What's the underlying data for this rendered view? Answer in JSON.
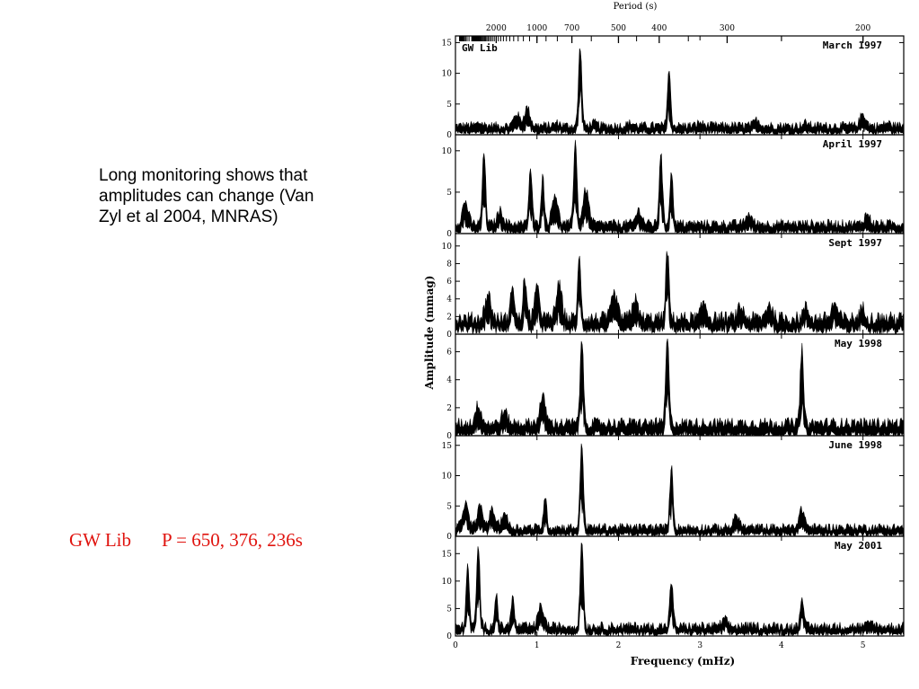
{
  "slide": {
    "note": "Long monitoring shows that amplitudes can change (Van Zyl et al 2004, MNRAS)",
    "caption_star": "GW Lib",
    "caption_periods": "P = 650, 376, 236s"
  },
  "chart_data": {
    "type": "line",
    "title": "GW Lib",
    "xlabel": "Frequency (mHz)",
    "ylabel": "Amplitude (mmag)",
    "top_axis_label": "Period (s)",
    "top_axis_ticks": [
      {
        "value": 2000,
        "label": "2000"
      },
      {
        "value": 1000,
        "label": "1000"
      },
      {
        "value": 700,
        "label": "700"
      },
      {
        "value": 500,
        "label": "500"
      },
      {
        "value": 400,
        "label": "400"
      },
      {
        "value": 300,
        "label": "300"
      },
      {
        "value": 200,
        "label": "200"
      }
    ],
    "xlim": [
      0,
      5.5
    ],
    "xticks": [
      0,
      1,
      2,
      3,
      4,
      5
    ],
    "panels": [
      {
        "label": "March 1997",
        "show_star": true,
        "ylim": [
          0,
          15.5
        ],
        "yticks": [
          0,
          5,
          10,
          15
        ],
        "baseline": 1.5,
        "peaks": [
          [
            0.3,
            1.5
          ],
          [
            0.75,
            3
          ],
          [
            0.88,
            4
          ],
          [
            1.25,
            1.5
          ],
          [
            1.53,
            14
          ],
          [
            1.7,
            1.5
          ],
          [
            2.15,
            1.5
          ],
          [
            2.62,
            10
          ],
          [
            3.0,
            1.5
          ],
          [
            3.7,
            2
          ],
          [
            4.3,
            1.5
          ],
          [
            5.0,
            3
          ],
          [
            5.3,
            1.5
          ]
        ]
      },
      {
        "label": "April 1997",
        "show_star": false,
        "ylim": [
          0,
          11.5
        ],
        "yticks": [
          0,
          5,
          10
        ],
        "baseline": 1.2,
        "peaks": [
          [
            0.12,
            3.5
          ],
          [
            0.35,
            9.5
          ],
          [
            0.55,
            2.5
          ],
          [
            0.92,
            7.5
          ],
          [
            1.07,
            6.5
          ],
          [
            1.22,
            4.5
          ],
          [
            1.47,
            11
          ],
          [
            1.6,
            5
          ],
          [
            2.25,
            2.5
          ],
          [
            2.52,
            9.5
          ],
          [
            2.65,
            7
          ],
          [
            3.6,
            2
          ],
          [
            5.05,
            2
          ]
        ]
      },
      {
        "label": "Sept 1997",
        "show_star": false,
        "ylim": [
          0,
          11
        ],
        "yticks": [
          0,
          2,
          4,
          6,
          8,
          10
        ],
        "baseline": 1.8,
        "peaks": [
          [
            0.4,
            4
          ],
          [
            0.7,
            5.5
          ],
          [
            0.85,
            6
          ],
          [
            1.0,
            4.5
          ],
          [
            1.27,
            5
          ],
          [
            1.52,
            8
          ],
          [
            1.95,
            4
          ],
          [
            2.2,
            3.5
          ],
          [
            2.6,
            9
          ],
          [
            3.05,
            3
          ],
          [
            3.5,
            2.5
          ],
          [
            3.85,
            3
          ],
          [
            4.3,
            2.5
          ],
          [
            4.65,
            3
          ],
          [
            5.0,
            2.5
          ]
        ]
      },
      {
        "label": "May 1998",
        "show_star": false,
        "ylim": [
          0,
          7
        ],
        "yticks": [
          0,
          2,
          4,
          6
        ],
        "baseline": 0.9,
        "peaks": [
          [
            0.28,
            2
          ],
          [
            0.6,
            1.5
          ],
          [
            1.07,
            2.5
          ],
          [
            1.55,
            6.7
          ],
          [
            2.6,
            6.8
          ],
          [
            4.25,
            6
          ]
        ]
      },
      {
        "label": "June 1998",
        "show_star": false,
        "ylim": [
          0,
          16
        ],
        "yticks": [
          0,
          5,
          10,
          15
        ],
        "baseline": 1.5,
        "peaks": [
          [
            0.12,
            5
          ],
          [
            0.3,
            4.5
          ],
          [
            0.45,
            4
          ],
          [
            0.6,
            3.5
          ],
          [
            1.1,
            6
          ],
          [
            1.55,
            15
          ],
          [
            2.65,
            11
          ],
          [
            3.45,
            3
          ],
          [
            4.25,
            4
          ]
        ]
      },
      {
        "label": "May 2001",
        "show_star": false,
        "ylim": [
          0,
          17.5
        ],
        "yticks": [
          0,
          5,
          10,
          15
        ],
        "baseline": 1.8,
        "peaks": [
          [
            0.15,
            12
          ],
          [
            0.28,
            16
          ],
          [
            0.5,
            7
          ],
          [
            0.7,
            6.5
          ],
          [
            1.05,
            5
          ],
          [
            1.55,
            17
          ],
          [
            2.65,
            9.5
          ],
          [
            3.3,
            2.5
          ],
          [
            4.25,
            7
          ],
          [
            5.1,
            2
          ]
        ]
      }
    ]
  }
}
